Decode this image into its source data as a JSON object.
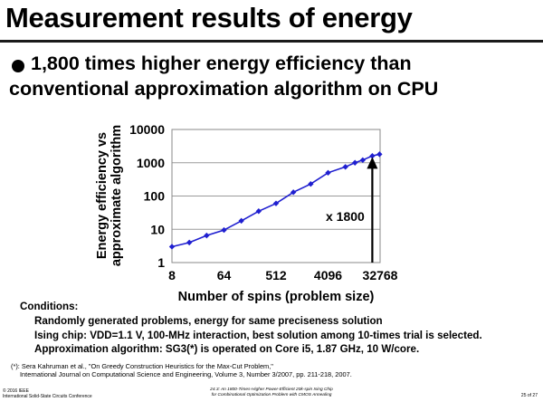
{
  "slide": {
    "title": "Measurement results of energy",
    "bullet_line1": "1,800 times higher energy efficiency than",
    "bullet_line2": "conventional approximation algorithm on CPU"
  },
  "chart_data": {
    "type": "line",
    "title": "",
    "xlabel": "Number of spins (problem size)",
    "ylabel": "Energy efficiency vs approximate algorithm",
    "ylabel_line1": "Energy efficiency vs",
    "ylabel_line2": "approximate algorithm",
    "x_scale": "log2",
    "y_scale": "log10",
    "xlim": [
      8,
      32768
    ],
    "ylim": [
      1,
      10000
    ],
    "x_ticks": [
      8,
      64,
      512,
      4096,
      32768
    ],
    "y_ticks": [
      1,
      10,
      100,
      1000,
      10000
    ],
    "x_tick_labels": [
      "8",
      "64",
      "512",
      "4096",
      "32768"
    ],
    "y_tick_labels": [
      "1",
      "10",
      "100",
      "1000",
      "10000"
    ],
    "series": [
      {
        "name": "Ising chip",
        "color": "#1f1fd0",
        "x": [
          8,
          16,
          32,
          64,
          128,
          256,
          512,
          1024,
          2048,
          4096,
          8192,
          12000,
          16384,
          24000,
          32000
        ],
        "y": [
          3,
          4,
          6.5,
          9.5,
          18,
          35,
          60,
          130,
          230,
          500,
          750,
          1000,
          1200,
          1600,
          1800
        ]
      }
    ],
    "annotation": {
      "text": "x 1800",
      "arrow_x": 24000,
      "arrow_from_y": 1,
      "arrow_to_y": 1800
    }
  },
  "conditions": {
    "heading": "Conditions:",
    "lines": [
      "Randomly generated problems, energy for same preciseness solution",
      "Ising chip: VDD=1.1 V, 100-MHz interaction, best solution among 10-times trial is selected.",
      "Approximation algorithm: SG3(*) is operated on Core i5, 1.87 GHz, 10 W/core."
    ]
  },
  "footnote": {
    "line1": "(*): Sera Kahruman et al., \"On Greedy Construction Heuristics for the Max-Cut Problem,\"",
    "line2": "International Journal on Computational Science and Engineering, Volume 3, Number 3/2007, pp. 211-218, 2007."
  },
  "footer": {
    "left1": "© 2016 IEEE",
    "left2": "International Solid-State Circuits Conference",
    "center1": "24.3: An 1800-Times-Higher Power-Efficient 20k-spin Ising Chip",
    "center2": "for Combinational Optimization Problem with CMOS Annealing",
    "page": "25 of 27"
  }
}
